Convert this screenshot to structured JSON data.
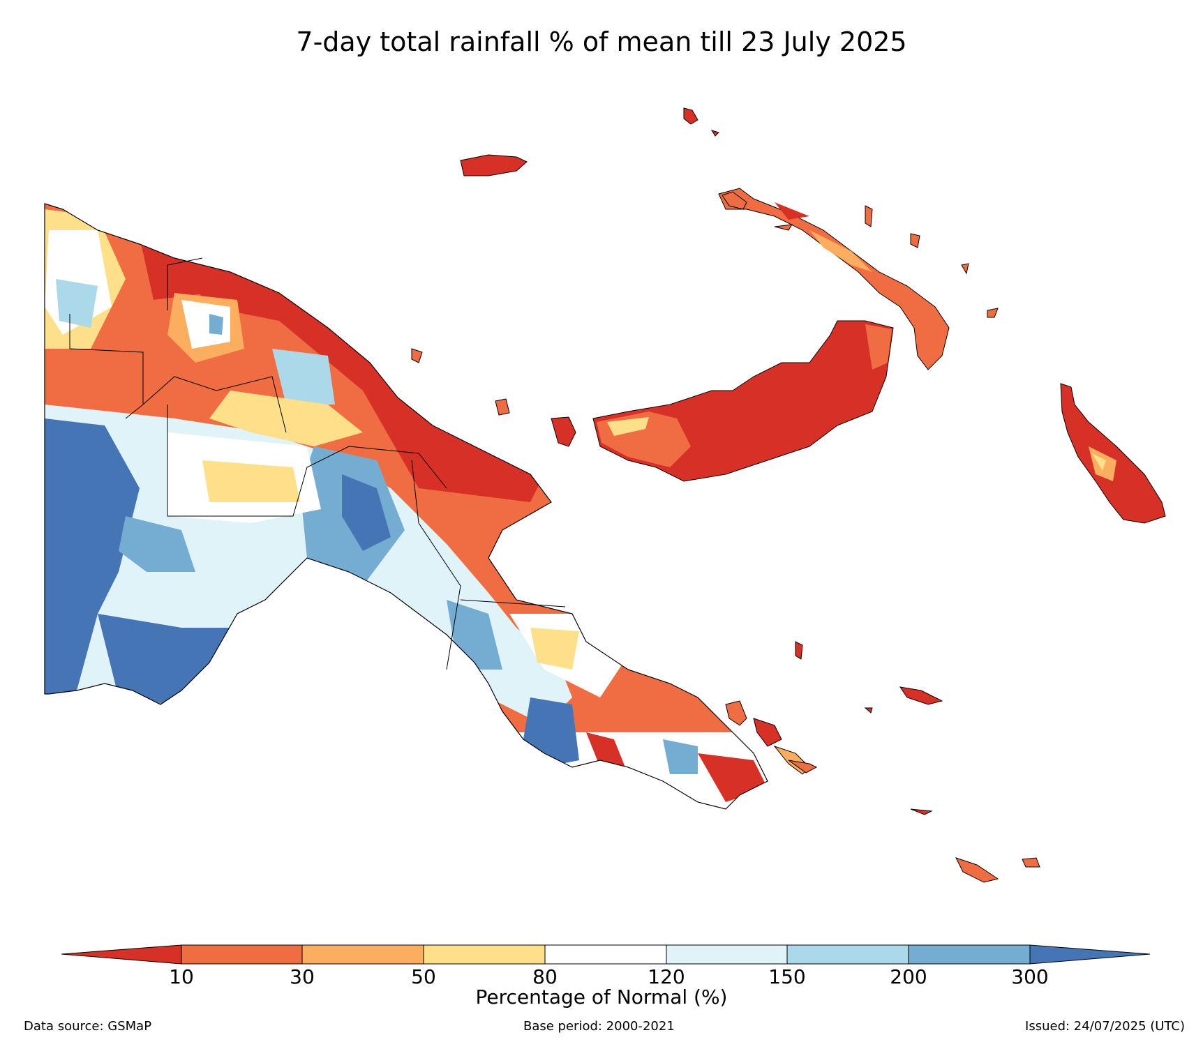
{
  "title": "7-day total rainfall % of mean till 23 July 2025",
  "colors": {
    "lt10": "#d73027",
    "b10_30": "#f06d43",
    "b30_50": "#fbad60",
    "b50_80": "#fee08b",
    "b80_120": "#ffffff",
    "b120_150": "#e0f3f8",
    "b150_200": "#abd9e9",
    "b200_300": "#74add1",
    "gt300": "#4575b4"
  },
  "colorbar": {
    "ticks": [
      "10",
      "30",
      "50",
      "80",
      "120",
      "150",
      "200",
      "300"
    ],
    "label": "Percentage of Normal (%)"
  },
  "footer": {
    "source": "Data source: GSMaP",
    "base_period": "Base period: 2000-2021",
    "issued": "Issued: 24/07/2025 (UTC)"
  }
}
